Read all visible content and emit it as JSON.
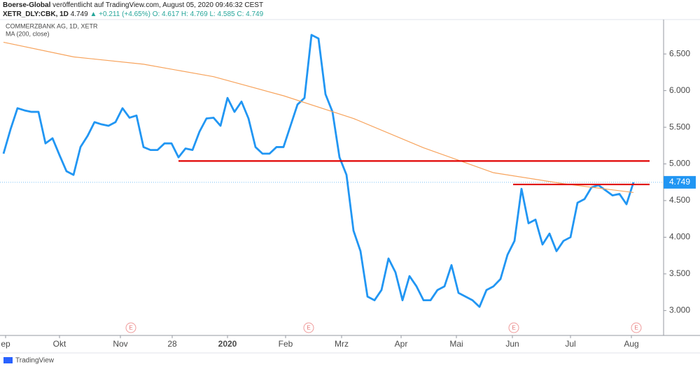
{
  "header": {
    "author": "Boerse-Global",
    "published": "veröffentlicht auf TradingView.com, August 05, 2020 09:46:32 CEST",
    "symbol": "XETR_DLY:CBK, 1D",
    "last": "4.749",
    "change": "▲ +0.211 (+4.65%)",
    "ohlc": "O: 4.617 H: 4.769 L: 4.585 C: 4.749"
  },
  "footer": {
    "brand": "TradingView"
  },
  "chart_data": {
    "type": "line",
    "title": "COMMERZBANK AG, 1D, XETR",
    "indicator": "MA (200, close)",
    "xlim": [
      -0.5,
      94.3
    ],
    "ylim": [
      2.66,
      6.95
    ],
    "yticks": [
      {
        "value": 3.0,
        "label": "3.000"
      },
      {
        "value": 3.5,
        "label": "3.500"
      },
      {
        "value": 4.0,
        "label": "4.000"
      },
      {
        "value": 4.5,
        "label": "4.500"
      },
      {
        "value": 5.0,
        "label": "5.000"
      },
      {
        "value": 5.5,
        "label": "5.500"
      },
      {
        "value": 6.0,
        "label": "6.000"
      },
      {
        "value": 6.5,
        "label": "6.500"
      }
    ],
    "xticks": [
      {
        "value": 0.3,
        "label": "ep"
      },
      {
        "value": 8,
        "label": "Okt"
      },
      {
        "value": 16.7,
        "label": "Nov"
      },
      {
        "value": 24.1,
        "label": "28"
      },
      {
        "value": 32,
        "label": "2020"
      },
      {
        "value": 40.3,
        "label": "Feb"
      },
      {
        "value": 48.3,
        "label": "Mrz"
      },
      {
        "value": 56.8,
        "label": "Apr"
      },
      {
        "value": 64.7,
        "label": "Mai"
      },
      {
        "value": 72.7,
        "label": "Jun"
      },
      {
        "value": 81,
        "label": "Jul"
      },
      {
        "value": 89.7,
        "label": "Aug"
      }
    ],
    "series": [
      {
        "name": "COMMERZBANK AG",
        "color": "#2196f3",
        "values": [
          5.14,
          5.47,
          5.76,
          5.73,
          5.71,
          5.71,
          5.28,
          5.35,
          5.12,
          4.9,
          4.85,
          5.23,
          5.38,
          5.57,
          5.54,
          5.52,
          5.57,
          5.76,
          5.63,
          5.66,
          5.23,
          5.19,
          5.19,
          5.28,
          5.28,
          5.09,
          5.21,
          5.19,
          5.44,
          5.62,
          5.63,
          5.52,
          5.9,
          5.71,
          5.85,
          5.62,
          5.23,
          5.14,
          5.14,
          5.23,
          5.23,
          5.52,
          5.81,
          5.9,
          6.76,
          6.71,
          5.95,
          5.71,
          5.09,
          4.85,
          4.09,
          3.81,
          3.19,
          3.14,
          3.28,
          3.71,
          3.52,
          3.14,
          3.47,
          3.33,
          3.14,
          3.14,
          3.28,
          3.33,
          3.62,
          3.24,
          3.19,
          3.14,
          3.05,
          3.28,
          3.33,
          3.43,
          3.76,
          3.95,
          4.66,
          4.19,
          4.24,
          3.9,
          4.05,
          3.81,
          3.95,
          4.0,
          4.47,
          4.52,
          4.68,
          4.71,
          4.64,
          4.57,
          4.59,
          4.45,
          4.749
        ]
      },
      {
        "name": "MA (200, close)",
        "color": "#f7a35c",
        "x": [
          0,
          10,
          20,
          30,
          40,
          50,
          60,
          70,
          80,
          90
        ],
        "values": [
          6.66,
          6.46,
          6.36,
          6.19,
          5.93,
          5.62,
          5.22,
          4.88,
          4.73,
          4.61
        ]
      }
    ],
    "last_price": {
      "value": 4.749,
      "label": "4.749",
      "color": "#2196f3"
    },
    "levels": [
      {
        "value": 5.04,
        "x": [
          25,
          92.3
        ],
        "color": "#e00000"
      },
      {
        "value": 4.72,
        "x": [
          72.8,
          92.3
        ],
        "color": "#e00000"
      }
    ],
    "events": [
      {
        "x": 18.2,
        "label": "E"
      },
      {
        "x": 43.6,
        "label": "E"
      },
      {
        "x": 72.9,
        "label": "E"
      },
      {
        "x": 90.4,
        "label": "E"
      }
    ]
  }
}
